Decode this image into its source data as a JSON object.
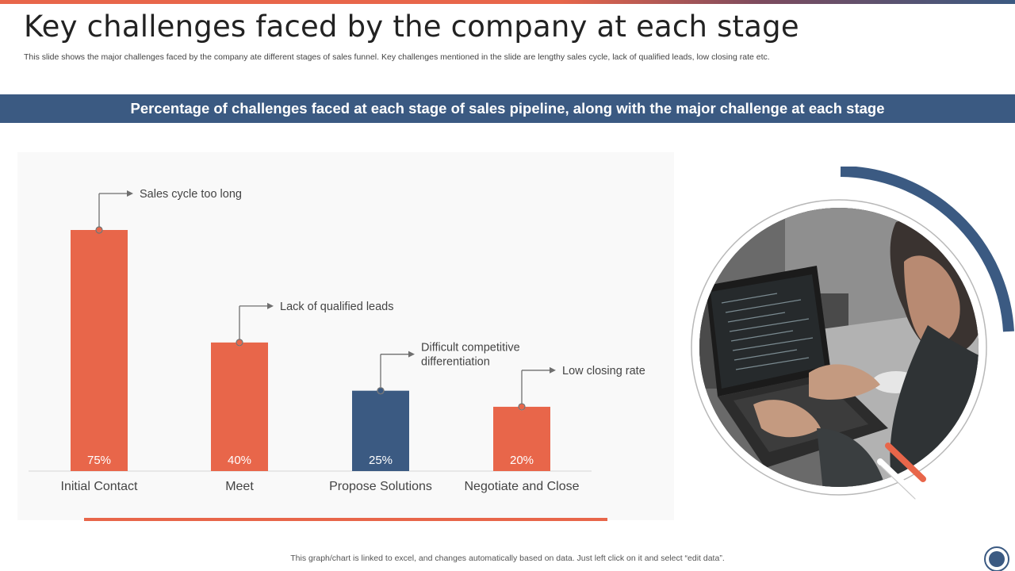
{
  "slide": {
    "title": "Key challenges faced by the company at each stage",
    "subtitle": "This slide shows the major challenges faced by the company ate different stages of sales funnel. Key challenges mentioned in the slide are lengthy sales cycle, lack of qualified leads, low closing rate etc.",
    "banner": "Percentage of challenges faced at each stage of sales pipeline, along with the major challenge at each stage",
    "footer": "This graph/chart is linked to excel,  and changes automatically based on data. Just left click on it and select “edit data”."
  },
  "colors": {
    "accent": "#e8664a",
    "primary": "#3b5a82"
  },
  "chart_data": {
    "type": "bar",
    "categories": [
      "Initial Contact",
      "Meet",
      "Propose Solutions",
      "Negotiate and Close"
    ],
    "values": [
      75,
      40,
      25,
      20
    ],
    "value_labels": [
      "75%",
      "40%",
      "25%",
      "20%"
    ],
    "bar_colors": [
      "#e8664a",
      "#e8664a",
      "#3b5a82",
      "#e8664a"
    ],
    "annotations": [
      [
        "Sales cycle too long"
      ],
      [
        "Lack of qualified leads"
      ],
      [
        "Difficult competitive",
        "differentiation"
      ],
      [
        "Low closing rate"
      ]
    ],
    "title": "",
    "xlabel": "",
    "ylabel": "",
    "grid": false,
    "legend": "none"
  }
}
